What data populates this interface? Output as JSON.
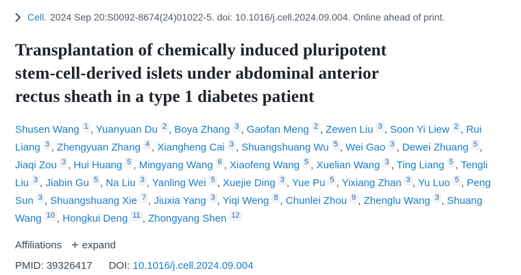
{
  "colors": {
    "link_blue": "#1a7dc6",
    "title_dark": "#1e2329",
    "citation_slate": "#4e5964",
    "body_slate": "#3c4852",
    "sup_background": "#f1f2f4",
    "sup_text": "#1f6bb0"
  },
  "citation": {
    "chevron_icon": "chevron-right",
    "journal_link": "Cell.",
    "details": "2024 Sep 20:S0092-8674(24)01022-5. doi: 10.1016/j.cell.2024.09.004. Online ahead of print."
  },
  "title": "Transplantation of chemically induced pluripotent stem-cell-derived islets under abdominal anterior rectus sheath in a type 1 diabetes patient",
  "title_lines": [
    "Transplantation of chemically induced pluripotent",
    "stem-cell-derived islets under abdominal anterior",
    "rectus sheath in a type 1 diabetes patient"
  ],
  "authors": [
    {
      "name": "Shusen Wang",
      "affiliation": "1"
    },
    {
      "name": "Yuanyuan Du",
      "affiliation": "2"
    },
    {
      "name": "Boya Zhang",
      "affiliation": "3"
    },
    {
      "name": "Gaofan Meng",
      "affiliation": "2"
    },
    {
      "name": "Zewen Liu",
      "affiliation": "3"
    },
    {
      "name": "Soon Yi Liew",
      "affiliation": "2"
    },
    {
      "name": "Rui Liang",
      "affiliation": "3"
    },
    {
      "name": "Zhengyuan Zhang",
      "affiliation": "4"
    },
    {
      "name": "Xiangheng Cai",
      "affiliation": "3"
    },
    {
      "name": "Shuangshuang Wu",
      "affiliation": "5"
    },
    {
      "name": "Wei Gao",
      "affiliation": "3"
    },
    {
      "name": "Dewei Zhuang",
      "affiliation": "5"
    },
    {
      "name": "Jiaqi Zou",
      "affiliation": "3"
    },
    {
      "name": "Hui Huang",
      "affiliation": "5"
    },
    {
      "name": "Mingyang Wang",
      "affiliation": "6"
    },
    {
      "name": "Xiaofeng Wang",
      "affiliation": "5"
    },
    {
      "name": "Xuelian Wang",
      "affiliation": "3"
    },
    {
      "name": "Ting Liang",
      "affiliation": "5"
    },
    {
      "name": "Tengli Liu",
      "affiliation": "3"
    },
    {
      "name": "Jiabin Gu",
      "affiliation": "5"
    },
    {
      "name": "Na Liu",
      "affiliation": "3"
    },
    {
      "name": "Yanling Wei",
      "affiliation": "5"
    },
    {
      "name": "Xuejie Ding",
      "affiliation": "3"
    },
    {
      "name": "Yue Pu",
      "affiliation": "5"
    },
    {
      "name": "Yixiang Zhan",
      "affiliation": "3"
    },
    {
      "name": "Yu Luo",
      "affiliation": "5"
    },
    {
      "name": "Peng Sun",
      "affiliation": "3"
    },
    {
      "name": "Shuangshuang Xie",
      "affiliation": "7"
    },
    {
      "name": "Jiuxia Yang",
      "affiliation": "3"
    },
    {
      "name": "Yiqi Weng",
      "affiliation": "8"
    },
    {
      "name": "Chunlei Zhou",
      "affiliation": "9"
    },
    {
      "name": "Zhenglu Wang",
      "affiliation": "3"
    },
    {
      "name": "Shuang Wang",
      "affiliation": "10"
    },
    {
      "name": "Hongkui Deng",
      "affiliation": "11"
    },
    {
      "name": "Zhongyang Shen",
      "affiliation": "12"
    }
  ],
  "affiliations": {
    "label": "Affiliations",
    "expand_icon": "+",
    "expand_label": "expand"
  },
  "identifiers": {
    "pmid_label": "PMID:",
    "pmid": "39326417",
    "doi_label": "DOI:",
    "doi": "10.1016/j.cell.2024.09.004"
  }
}
